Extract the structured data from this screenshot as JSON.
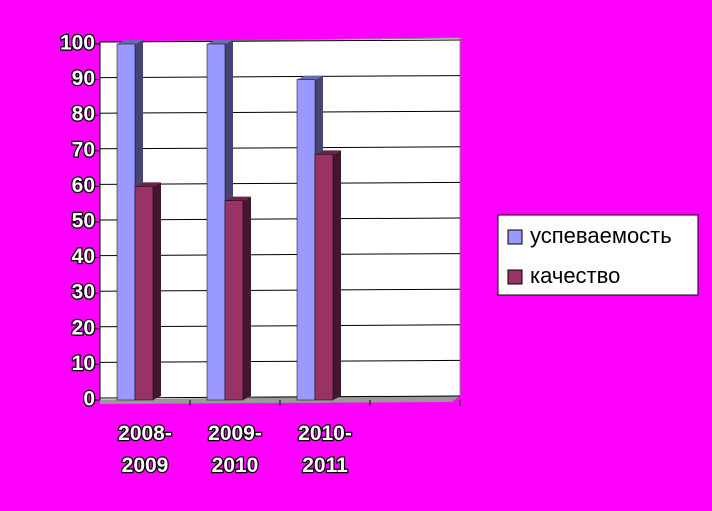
{
  "chart_data": {
    "type": "bar",
    "categories": [
      "2008-2009",
      "2009-2010",
      "2010-2011",
      null
    ],
    "series": [
      {
        "name": "успеваемость",
        "color": "#9999ff",
        "values": [
          100,
          100,
          90,
          null
        ]
      },
      {
        "name": "качество",
        "color": "#993366",
        "values": [
          60,
          56,
          69,
          null
        ]
      }
    ],
    "ylim": [
      0,
      100
    ],
    "yticks": [
      0,
      10,
      20,
      30,
      40,
      50,
      60,
      70,
      80,
      90,
      100
    ],
    "grid": true,
    "legend": "right"
  }
}
